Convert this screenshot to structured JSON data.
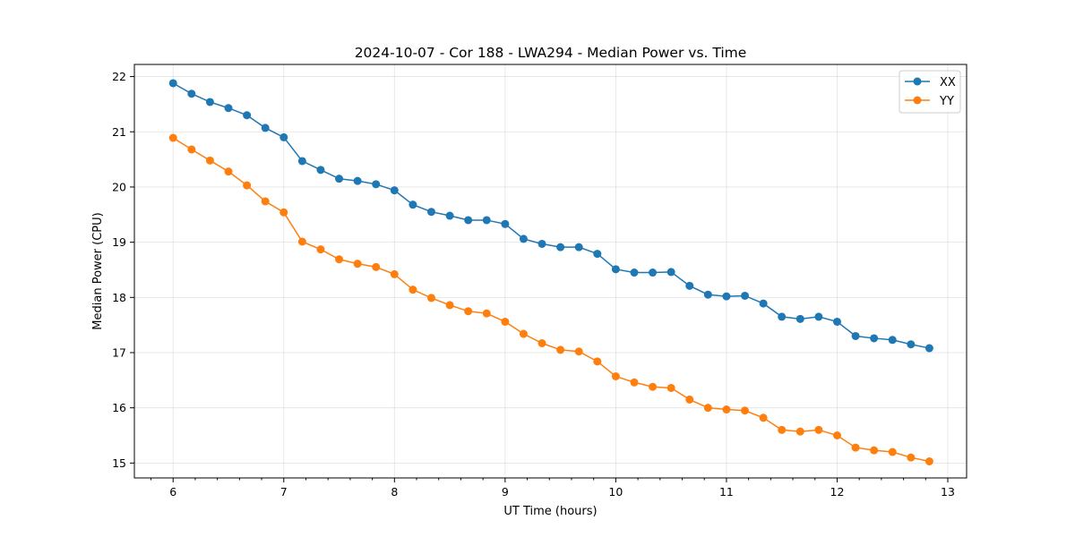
{
  "chart_data": {
    "type": "line",
    "title": "2024-10-07 - Cor 188 - LWA294 - Median Power vs. Time",
    "xlabel": "UT Time (hours)",
    "ylabel": "Median Power (CPU)",
    "xlim": [
      5.65,
      13.17
    ],
    "ylim": [
      14.73,
      22.22
    ],
    "xticks": [
      6,
      7,
      8,
      9,
      10,
      11,
      12,
      13
    ],
    "yticks": [
      15,
      16,
      17,
      18,
      19,
      20,
      21,
      22
    ],
    "x_minor_step": 0.2,
    "grid": true,
    "legend_position": "top-right",
    "x": [
      6.0,
      6.1667,
      6.3333,
      6.5,
      6.6667,
      6.8333,
      7.0,
      7.1667,
      7.3333,
      7.5,
      7.6667,
      7.8333,
      8.0,
      8.1667,
      8.3333,
      8.5,
      8.6667,
      8.8333,
      9.0,
      9.1667,
      9.3333,
      9.5,
      9.6667,
      9.8333,
      10.0,
      10.1667,
      10.3333,
      10.5,
      10.6667,
      10.8333,
      11.0,
      11.1667,
      11.3333,
      11.5,
      11.6667,
      11.8333,
      12.0,
      12.1667,
      12.3333,
      12.5,
      12.6667,
      12.8333
    ],
    "series": [
      {
        "name": "XX",
        "color": "#1f77b4",
        "values": [
          21.88,
          21.69,
          21.54,
          21.43,
          21.3,
          21.07,
          20.9,
          20.47,
          20.31,
          20.15,
          20.11,
          20.05,
          19.94,
          19.68,
          19.55,
          19.48,
          19.4,
          19.4,
          19.33,
          19.06,
          18.97,
          18.91,
          18.91,
          18.79,
          18.51,
          18.45,
          18.45,
          18.46,
          18.21,
          18.05,
          18.02,
          18.03,
          17.89,
          17.65,
          17.61,
          17.65,
          17.56,
          17.3,
          17.26,
          17.23,
          17.15,
          17.08
        ]
      },
      {
        "name": "YY",
        "color": "#ff7f0e",
        "values": [
          20.89,
          20.68,
          20.48,
          20.28,
          20.03,
          19.74,
          19.54,
          19.01,
          18.87,
          18.69,
          18.61,
          18.55,
          18.42,
          18.14,
          17.99,
          17.86,
          17.75,
          17.71,
          17.56,
          17.34,
          17.17,
          17.05,
          17.02,
          16.84,
          16.57,
          16.46,
          16.38,
          16.36,
          16.15,
          16.0,
          15.97,
          15.95,
          15.82,
          15.6,
          15.57,
          15.6,
          15.5,
          15.28,
          15.23,
          15.2,
          15.1,
          15.03
        ]
      }
    ]
  }
}
